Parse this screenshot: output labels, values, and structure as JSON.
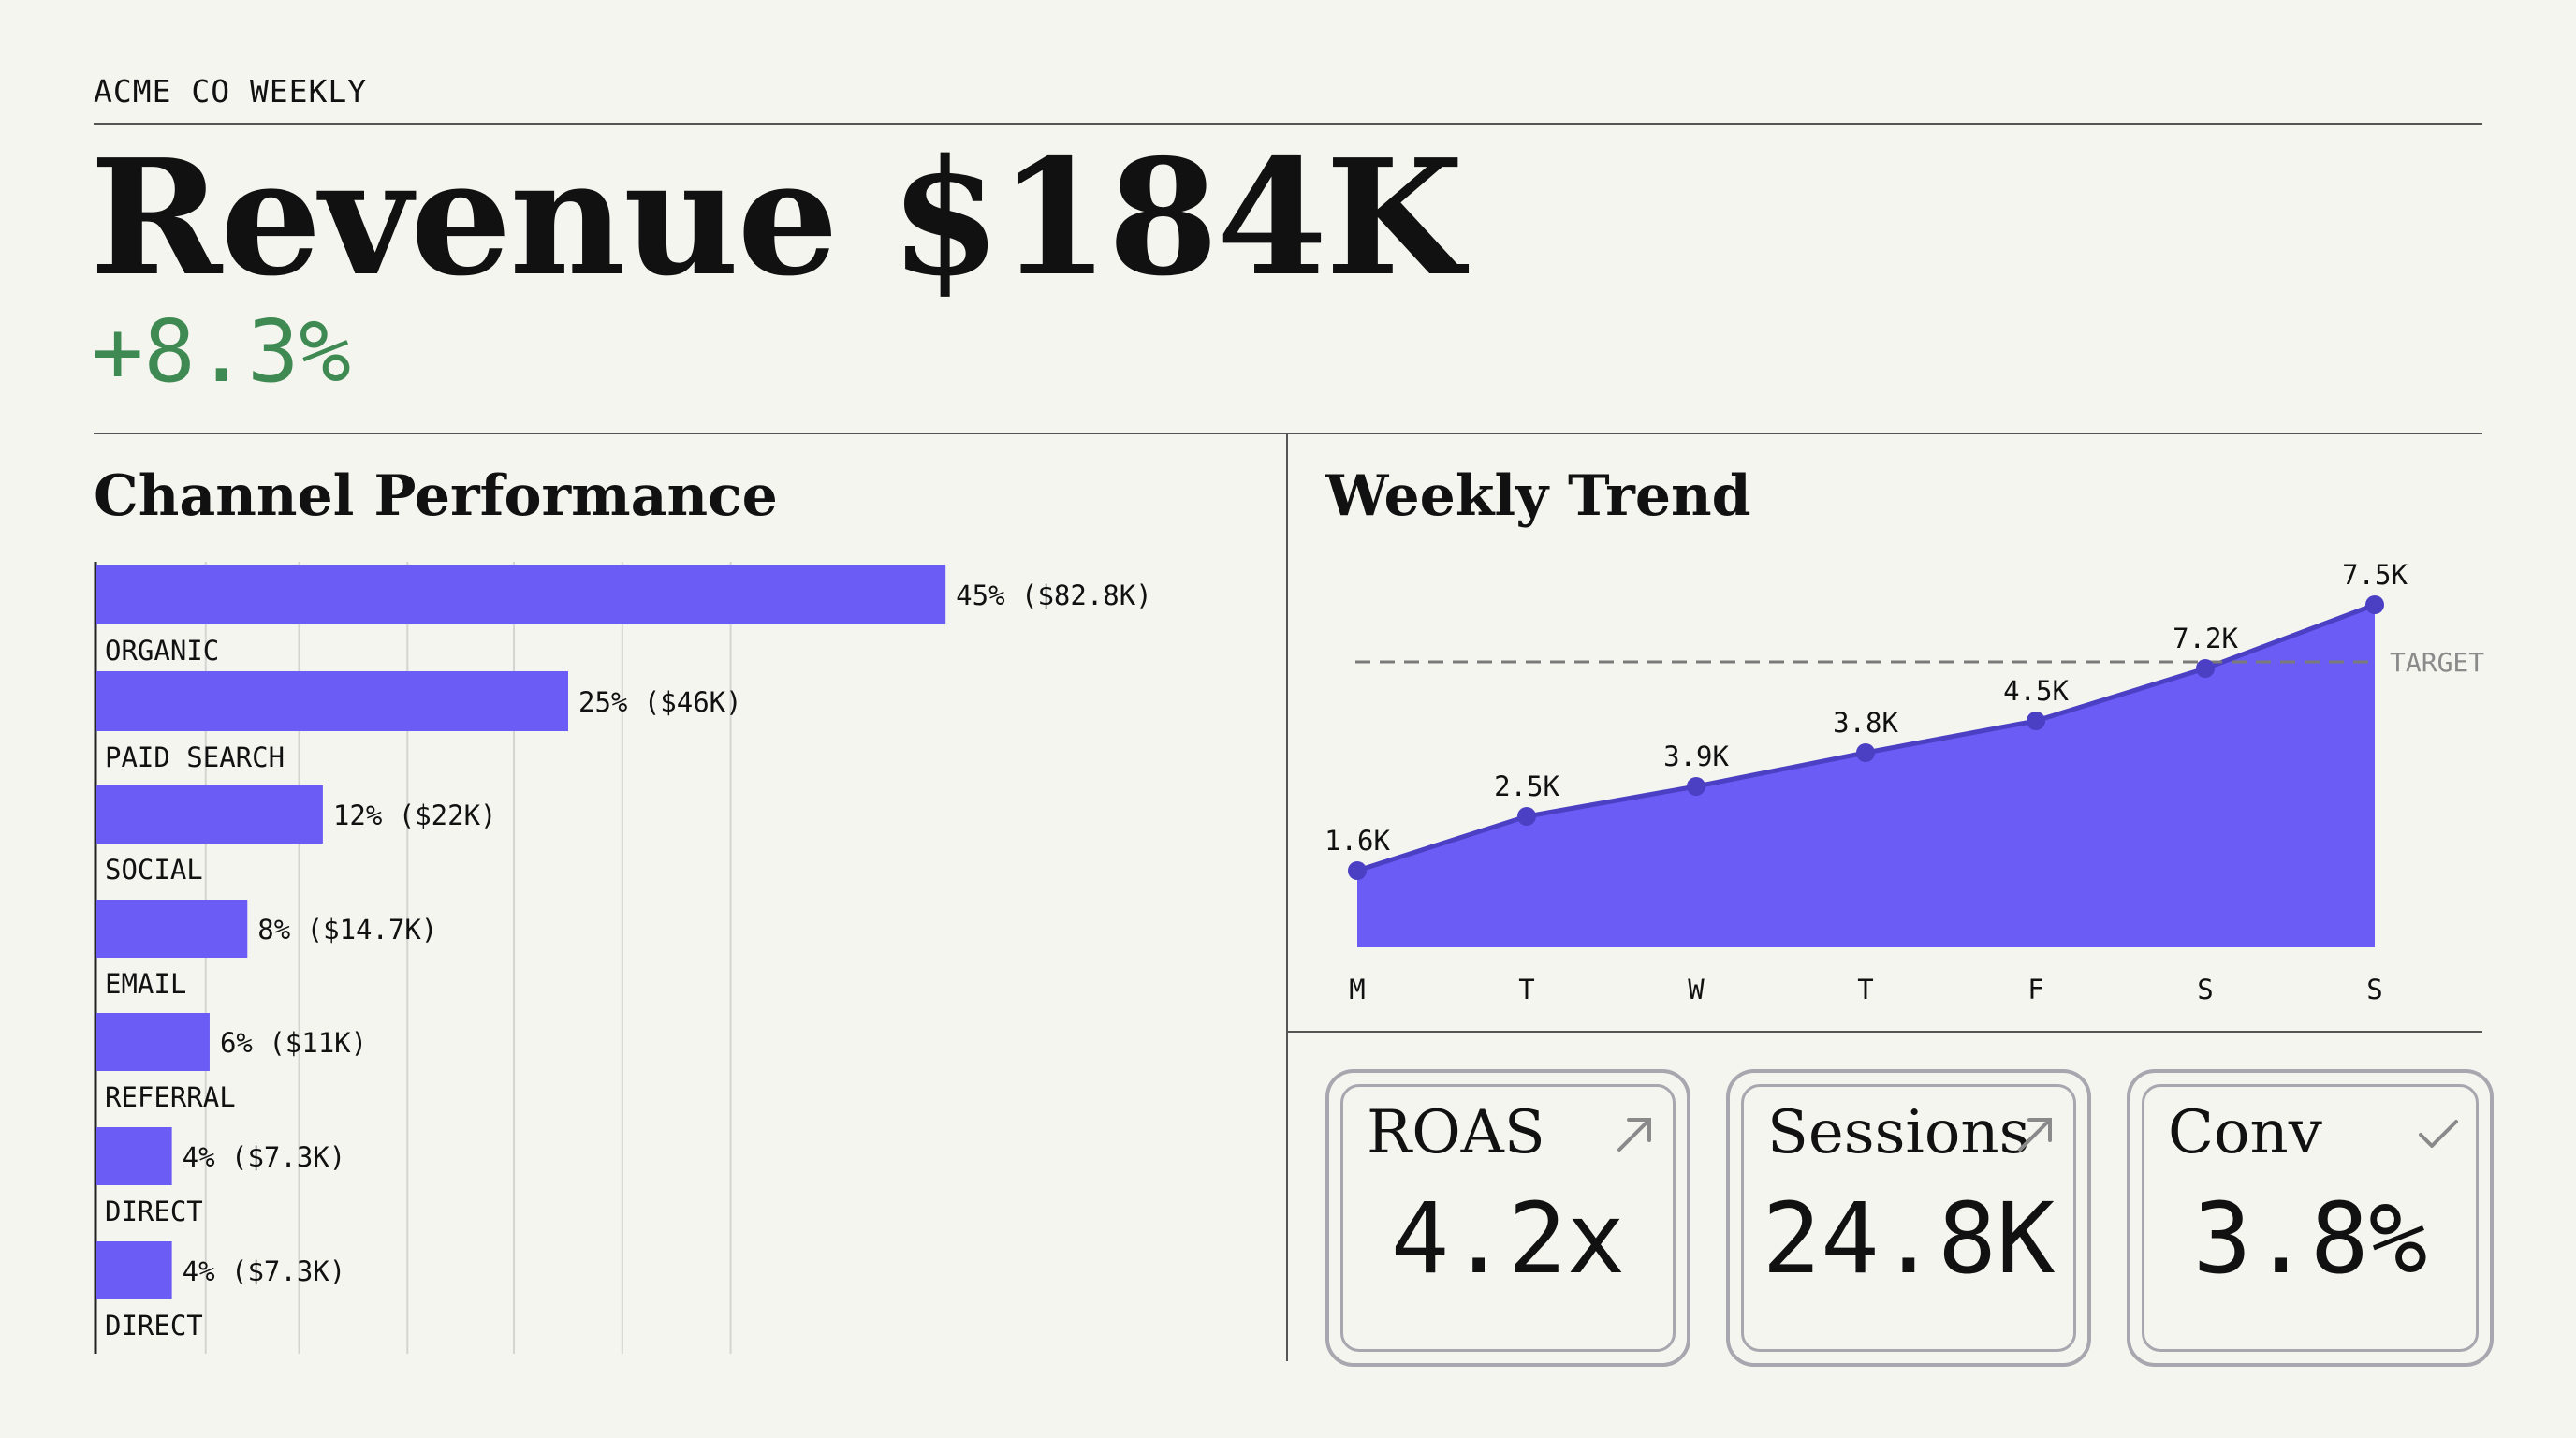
{
  "header": {
    "brand": "ACME CO WEEKLY",
    "headline": "Revenue $184K",
    "delta": "+8.3%"
  },
  "channel_panel": {
    "title": "Channel Performance"
  },
  "trend_panel": {
    "title": "Weekly Trend"
  },
  "colors": {
    "accent": "#6c5cf6",
    "accent_dark": "#4b3fc4",
    "positive": "#3f8a52"
  },
  "kpis": [
    {
      "label": "ROAS",
      "value": "4.2x",
      "icon": "arrow-up-right-icon"
    },
    {
      "label": "Sessions",
      "value": "24.8K",
      "icon": "arrow-up-right-icon"
    },
    {
      "label": "Conv",
      "value": "3.8%",
      "icon": "check-icon"
    }
  ],
  "chart_data": [
    {
      "type": "bar",
      "orientation": "horizontal",
      "title": "Channel Performance",
      "categories": [
        "ORGANIC",
        "PAID SEARCH",
        "SOCIAL",
        "EMAIL",
        "REFERRAL",
        "DIRECT",
        "DIRECT"
      ],
      "values": [
        45,
        25,
        12,
        8,
        6,
        4,
        4
      ],
      "value_unit": "%",
      "data_labels": [
        "45% ($82.8K)",
        "25% ($46K)",
        "12% ($22K)",
        "8% ($14.7K)",
        "6% ($11K)",
        "4% ($7.3K)",
        "4% ($7.3K)"
      ],
      "xlim": [
        0,
        60
      ],
      "grid": true
    },
    {
      "type": "area",
      "title": "Weekly Trend",
      "categories": [
        "M",
        "T",
        "W",
        "T",
        "F",
        "S",
        "S"
      ],
      "values": [
        1.6,
        2.5,
        3.9,
        3.8,
        4.5,
        7.2,
        7.5
      ],
      "value_unit": "K",
      "data_labels": [
        "1.6K",
        "2.5K",
        "3.9K",
        "3.8K",
        "4.5K",
        "7.2K",
        "7.5K"
      ],
      "target": {
        "label": "TARGET",
        "value": 6.6
      },
      "ylim": [
        0,
        8
      ],
      "grid": false
    }
  ]
}
